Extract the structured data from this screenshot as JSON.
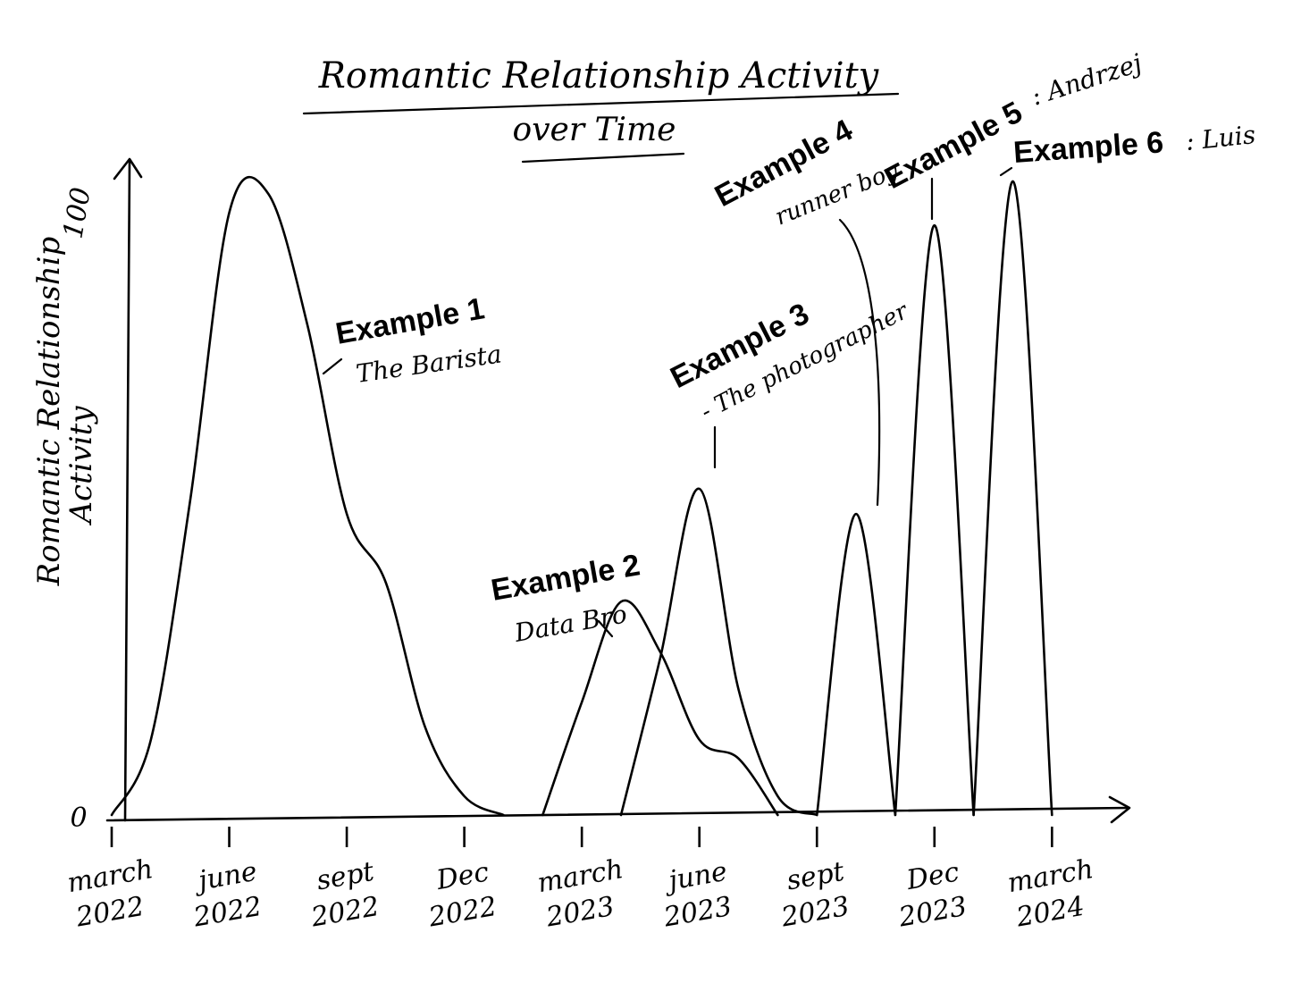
{
  "chart_data": {
    "type": "area",
    "title_line1": "Romantic Relationship Activity",
    "title_line2": "over Time",
    "ylabel_line1": "Romantic Relationship",
    "ylabel_line2": "Activity",
    "y_ticks": [
      {
        "value": 0,
        "label": "0"
      },
      {
        "value": 100,
        "label": "100"
      }
    ],
    "ylim": [
      0,
      100
    ],
    "xlim": [
      "2022-03",
      "2024-05"
    ],
    "x_ticks": [
      {
        "date": "2022-03",
        "line1": "march",
        "line2": "2022"
      },
      {
        "date": "2022-06",
        "line1": "june",
        "line2": "2022"
      },
      {
        "date": "2022-09",
        "line1": "sept",
        "line2": "2022"
      },
      {
        "date": "2022-12",
        "line1": "Dec",
        "line2": "2022"
      },
      {
        "date": "2023-03",
        "line1": "march",
        "line2": "2023"
      },
      {
        "date": "2023-06",
        "line1": "june",
        "line2": "2023"
      },
      {
        "date": "2023-09",
        "line1": "sept",
        "line2": "2023"
      },
      {
        "date": "2023-12",
        "line1": "Dec",
        "line2": "2023"
      },
      {
        "date": "2024-03",
        "line1": "march",
        "line2": "2024"
      }
    ],
    "series": [
      {
        "name": "Example 1",
        "note": "The Barista",
        "points": [
          [
            "2022-03",
            0
          ],
          [
            "2022-04",
            12
          ],
          [
            "2022-05",
            50
          ],
          [
            "2022-06",
            96
          ],
          [
            "2022-07",
            99
          ],
          [
            "2022-08",
            78
          ],
          [
            "2022-09",
            48
          ],
          [
            "2022-10",
            37
          ],
          [
            "2022-11",
            14
          ],
          [
            "2022-12",
            3
          ],
          [
            "2023-01",
            0
          ]
        ]
      },
      {
        "name": "Example 2",
        "note": "Data Bro",
        "points": [
          [
            "2023-02",
            0
          ],
          [
            "2023-03",
            18
          ],
          [
            "2023-04",
            34
          ],
          [
            "2023-05",
            26
          ],
          [
            "2023-06",
            12
          ],
          [
            "2023-07",
            9
          ],
          [
            "2023-08",
            0
          ]
        ]
      },
      {
        "name": "Example 3",
        "note": "- The photographer",
        "points": [
          [
            "2023-04",
            0
          ],
          [
            "2023-05",
            25
          ],
          [
            "2023-06",
            52
          ],
          [
            "2023-07",
            20
          ],
          [
            "2023-08",
            3
          ],
          [
            "2023-09",
            0
          ]
        ]
      },
      {
        "name": "Example 4",
        "note": "runner boy",
        "points": [
          [
            "2023-09",
            0
          ],
          [
            "2023-10",
            48
          ],
          [
            "2023-11",
            0
          ]
        ]
      },
      {
        "name": "Example 5",
        "note": ": Andrzej",
        "points": [
          [
            "2023-11",
            0
          ],
          [
            "2023-12",
            94
          ],
          [
            "2024-01",
            0
          ]
        ]
      },
      {
        "name": "Example 6",
        "note": ": Luis",
        "points": [
          [
            "2024-01",
            0
          ],
          [
            "2024-02",
            101
          ],
          [
            "2024-03",
            0
          ]
        ]
      }
    ],
    "grid": false,
    "legend": "none"
  }
}
